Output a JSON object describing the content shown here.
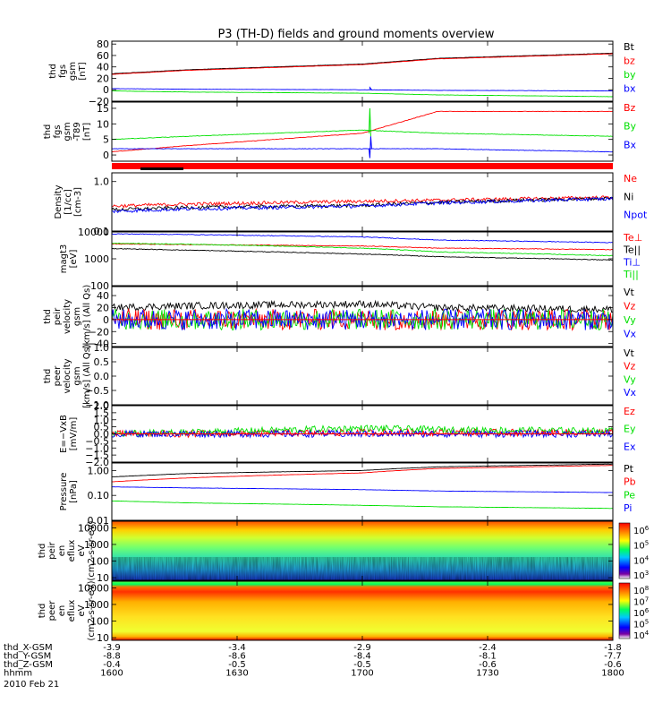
{
  "title": "P3 (TH-D) fields and ground moments overview",
  "x_ticks": [
    "1600",
    "1630",
    "1700",
    "1730",
    "1800"
  ],
  "orbit_rows": [
    {
      "label": "thd_X-GSM",
      "values": [
        "-3.9",
        "-3.4",
        "-2.9",
        "-2.4",
        "-1.8"
      ]
    },
    {
      "label": "thd_Y-GSM",
      "values": [
        "-8.8",
        "-8.6",
        "-8.4",
        "-8.1",
        "-7.7"
      ]
    },
    {
      "label": "thd_Z-GSM",
      "values": [
        "-0.4",
        "-0.5",
        "-0.5",
        "-0.6",
        "-0.6"
      ]
    },
    {
      "label": "hhmm",
      "values": [
        "1600",
        "1630",
        "1700",
        "1730",
        "1800"
      ]
    }
  ],
  "date_label": "2010 Feb 21",
  "colors": {
    "black": "#000000",
    "red": "#ff0000",
    "green": "#00e000",
    "blue": "#0000ff"
  },
  "chart_data": [
    {
      "type": "line",
      "ylabel": [
        "thd",
        "fgs",
        "gsm",
        "[nT]"
      ],
      "ylim": [
        -20,
        85
      ],
      "yticks": [
        "80",
        "60",
        "40",
        "20",
        "0",
        "−20"
      ],
      "ytick_values": [
        80,
        60,
        40,
        20,
        0,
        -20
      ],
      "x": [
        1600,
        1630,
        1700,
        1730,
        1800
      ],
      "series": [
        {
          "name": "Bt",
          "color": "#000000",
          "values": [
            28,
            35,
            45,
            55,
            64
          ]
        },
        {
          "name": "bz",
          "color": "#ff0000",
          "values": [
            27,
            34,
            44,
            54,
            63
          ]
        },
        {
          "name": "by",
          "color": "#00e000",
          "values": [
            -2,
            -4,
            -6,
            -9,
            -12
          ]
        },
        {
          "name": "bx",
          "color": "#0000ff",
          "values": [
            2,
            1,
            0,
            -1,
            -2
          ]
        }
      ]
    },
    {
      "type": "line",
      "ylabel": [
        "thd",
        "fgs",
        "gsm",
        "-T89",
        "[nT]"
      ],
      "ylim": [
        -2,
        17
      ],
      "yticks": [
        "15",
        "10",
        "5",
        "0"
      ],
      "ytick_values": [
        15,
        10,
        5,
        0
      ],
      "x": [
        1600,
        1630,
        1700,
        1730,
        1800
      ],
      "series": [
        {
          "name": "Bz",
          "color": "#ff0000",
          "values": [
            1,
            3,
            7,
            14,
            14
          ]
        },
        {
          "name": "By",
          "color": "#00e000",
          "values": [
            5,
            6,
            8,
            7,
            6
          ]
        },
        {
          "name": "Bx",
          "color": "#0000ff",
          "values": [
            2,
            2,
            2,
            2,
            1
          ]
        }
      ]
    },
    {
      "type": "line",
      "log": true,
      "ylabel": [
        "Density",
        "[1/cc]",
        "[cm-3]"
      ],
      "ylim": [
        0.1,
        1.5
      ],
      "yticks": [
        "1.0",
        "0.1"
      ],
      "ytick_values": [
        1.0,
        0.1
      ],
      "x": [
        1600,
        1630,
        1700,
        1730,
        1800
      ],
      "series": [
        {
          "name": "Ne",
          "color": "#ff0000",
          "values": [
            0.32,
            0.35,
            0.4,
            0.42,
            0.48
          ]
        },
        {
          "name": "Ni",
          "color": "#000000",
          "values": [
            0.27,
            0.3,
            0.33,
            0.38,
            0.46
          ]
        },
        {
          "name": "Npot",
          "color": "#0000ff",
          "values": [
            0.25,
            0.28,
            0.32,
            0.37,
            0.45
          ]
        }
      ]
    },
    {
      "type": "line",
      "log": true,
      "ylabel": [
        "magt3",
        "[eV]"
      ],
      "ylim": [
        100,
        10000
      ],
      "yticks": [
        "10000",
        "1000",
        "100"
      ],
      "ytick_values": [
        10000,
        1000,
        100
      ],
      "x": [
        1600,
        1630,
        1700,
        1730,
        1800
      ],
      "series": [
        {
          "name": "Te⊥",
          "color": "#ff0000",
          "values": [
            3600,
            3400,
            3000,
            2500,
            2200
          ]
        },
        {
          "name": "Te||",
          "color": "#000000",
          "values": [
            2400,
            2100,
            1500,
            1200,
            900
          ]
        },
        {
          "name": "Ti⊥",
          "color": "#0000ff",
          "values": [
            8500,
            8000,
            6500,
            5000,
            4000
          ]
        },
        {
          "name": "Ti||",
          "color": "#00e000",
          "values": [
            3800,
            3500,
            2500,
            1800,
            1300
          ]
        }
      ]
    },
    {
      "type": "line",
      "ylabel": [
        "thd",
        "peir",
        "velocity",
        "gsm",
        "[km/s] (All Qs)"
      ],
      "ylim": [
        -45,
        55
      ],
      "yticks": [
        "40",
        "20",
        "0",
        "−20",
        "−40"
      ],
      "ytick_values": [
        40,
        20,
        0,
        -20,
        -40
      ],
      "x": [
        1600,
        1630,
        1700,
        1730,
        1800
      ],
      "series": [
        {
          "name": "Vt",
          "color": "#000000",
          "values": [
            20,
            25,
            30,
            20,
            15
          ]
        },
        {
          "name": "Vz",
          "color": "#ff0000",
          "values": [
            0,
            0,
            0,
            0,
            0
          ]
        },
        {
          "name": "Vy",
          "color": "#00e000",
          "values": [
            0,
            0,
            0,
            0,
            0
          ]
        },
        {
          "name": "Vx",
          "color": "#0000ff",
          "values": [
            0,
            0,
            0,
            0,
            0
          ]
        }
      ]
    },
    {
      "type": "line",
      "ylabel": [
        "thd",
        "peer",
        "velocity",
        "gsm",
        "[km/s] (All Qs)"
      ],
      "ylim": [
        -1,
        1
      ],
      "yticks": [
        "1.0",
        "0.5",
        "0.0",
        "−0.5",
        "−1.0"
      ],
      "ytick_values": [
        1,
        0.5,
        0,
        -0.5,
        -1
      ],
      "x": [],
      "series": [
        {
          "name": "Vt",
          "color": "#000000",
          "values": []
        },
        {
          "name": "Vz",
          "color": "#ff0000",
          "values": []
        },
        {
          "name": "Vy",
          "color": "#00e000",
          "values": []
        },
        {
          "name": "Vx",
          "color": "#0000ff",
          "values": []
        }
      ]
    },
    {
      "type": "line",
      "ylabel": [
        "E=−VxB",
        "[mV/m]"
      ],
      "ylim": [
        -2,
        2
      ],
      "yticks": [
        "2.0",
        "1.5",
        "1.0",
        "0.5",
        "0.0",
        "−0.5",
        "−1.0",
        "−1.5",
        "−2.0"
      ],
      "ytick_values": [
        2,
        1.5,
        1,
        0.5,
        0,
        -0.5,
        -1,
        -1.5,
        -2
      ],
      "x": [
        1600,
        1630,
        1700,
        1730,
        1800
      ],
      "series": [
        {
          "name": "Ez",
          "color": "#ff0000",
          "values": [
            0,
            0,
            0.1,
            0.1,
            0.1
          ]
        },
        {
          "name": "Ey",
          "color": "#00e000",
          "values": [
            0,
            0.1,
            0.4,
            0.3,
            0.2
          ]
        },
        {
          "name": "Ex",
          "color": "#0000ff",
          "values": [
            0,
            0,
            0,
            0,
            0
          ]
        }
      ]
    },
    {
      "type": "line",
      "log": true,
      "ylabel": [
        "Pressure",
        "[nPa]"
      ],
      "ylim": [
        0.01,
        2
      ],
      "yticks": [
        "1.00",
        "0.10",
        "0.01"
      ],
      "ytick_values": [
        1,
        0.1,
        0.01
      ],
      "x": [
        1600,
        1630,
        1700,
        1730,
        1800
      ],
      "series": [
        {
          "name": "Pt",
          "color": "#000000",
          "values": [
            0.55,
            0.75,
            1.0,
            1.4,
            1.8
          ]
        },
        {
          "name": "Pb",
          "color": "#ff0000",
          "values": [
            0.35,
            0.5,
            0.8,
            1.2,
            1.6
          ]
        },
        {
          "name": "Pe",
          "color": "#00e000",
          "values": [
            0.06,
            0.05,
            0.04,
            0.035,
            0.03
          ]
        },
        {
          "name": "Pi",
          "color": "#0000ff",
          "values": [
            0.22,
            0.2,
            0.17,
            0.15,
            0.13
          ]
        }
      ]
    },
    {
      "type": "heatmap",
      "log": true,
      "ylabel": [
        "thd",
        "peir",
        "en",
        "eflux",
        "eV",
        "(cm2-s-sr-eV)"
      ],
      "yticks": [
        "10000",
        "1000",
        "100",
        "10"
      ],
      "ytick_values": [
        10000,
        1000,
        100,
        10
      ],
      "colorbar": {
        "ticks": [
          "10^6",
          "10^5",
          "10^4",
          "10^3"
        ],
        "range": [
          1000,
          1000000
        ]
      }
    },
    {
      "type": "heatmap",
      "log": true,
      "ylabel": [
        "thd",
        "peer",
        "en",
        "eflux",
        "eV",
        "(cm2-s-sr-eV)"
      ],
      "yticks": [
        "10000",
        "1000",
        "100",
        "10"
      ],
      "ytick_values": [
        10000,
        1000,
        100,
        10
      ],
      "colorbar": {
        "ticks": [
          "10^8",
          "10^7",
          "10^6",
          "10^5",
          "10^4"
        ],
        "range": [
          10000,
          100000000
        ]
      }
    }
  ]
}
